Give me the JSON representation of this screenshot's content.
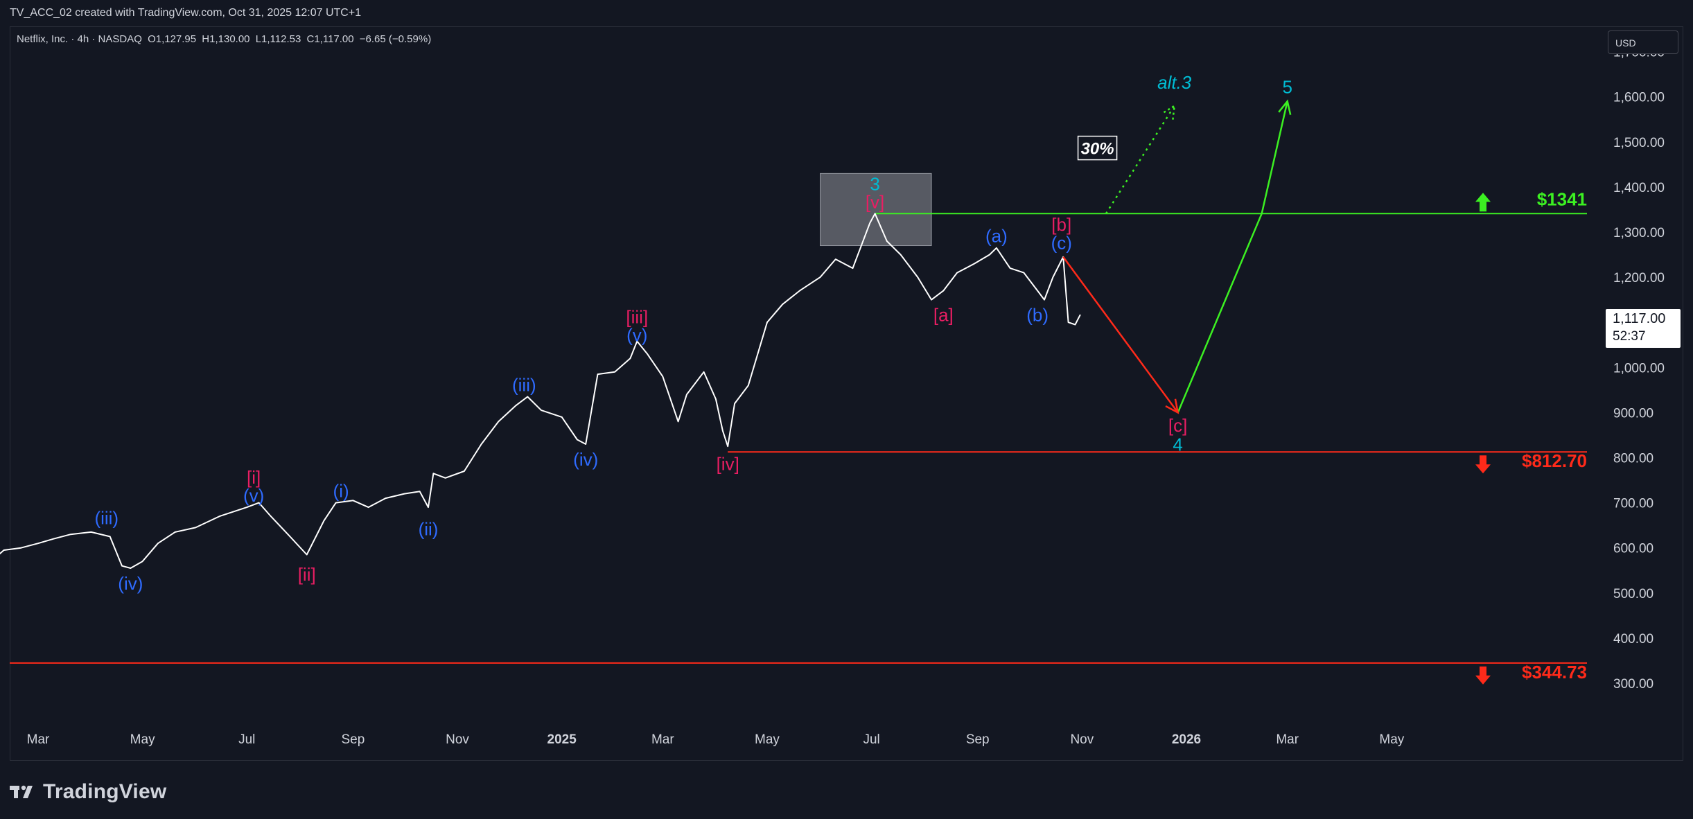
{
  "header": {
    "title": "TV_ACC_02 created with TradingView.com, Oct 31, 2025 12:07 UTC+1"
  },
  "symbol": {
    "name": "Netflix, Inc. · 4h · NASDAQ",
    "open": "O1,127.95",
    "high": "H1,130.00",
    "low": "L1,112.53",
    "close": "C1,117.00",
    "change": "−6.65 (−0.59%)"
  },
  "currency_button": "USD",
  "last_price": {
    "price": "1,117.00",
    "countdown": "52:37"
  },
  "footer": {
    "brand": "TradingView"
  },
  "colors": {
    "background": "#131722",
    "price_line": "#ffffff",
    "wave_blue": "#2f6bff",
    "wave_pink": "#e91e63",
    "wave_cyan": "#00bcd4",
    "target_green": "#3cf022",
    "stop_red": "#ff2a1a",
    "projection_red": "#ff2a1a",
    "projection_green": "#3cf022"
  },
  "chart_data": {
    "type": "line",
    "title": "",
    "xlabel": "",
    "ylabel": "",
    "ylim": [
      250,
      1750
    ],
    "y_ticks": [
      300,
      400,
      500,
      600,
      700,
      800,
      900,
      1000,
      1100,
      1200,
      1300,
      1400,
      1500,
      1600,
      1700
    ],
    "y_tick_labels": [
      "300.00",
      "400.00",
      "500.00",
      "600.00",
      "700.00",
      "800.00",
      "900.00",
      "1,000.00",
      "1,100.00",
      "1,200.00",
      "1,300.00",
      "1,400.00",
      "1,500.00",
      "1,600.00",
      "1,700.00"
    ],
    "x_tick_labels": [
      "Mar",
      "May",
      "Jul",
      "Sep",
      "Nov",
      "2025",
      "Mar",
      "May",
      "Jul",
      "Sep",
      "Nov",
      "2026",
      "Mar",
      "May"
    ],
    "x_tick_dates": [
      "2024-03-01",
      "2024-05-01",
      "2024-07-01",
      "2024-09-01",
      "2024-11-01",
      "2025-01-01",
      "2025-03-01",
      "2025-05-01",
      "2025-07-01",
      "2025-09-01",
      "2025-11-01",
      "2026-01-01",
      "2026-03-01",
      "2026-05-01"
    ],
    "series": [
      {
        "values": [
          [
            "2024-02-01",
            565
          ],
          [
            "2024-02-10",
            595
          ],
          [
            "2024-02-20",
            600
          ],
          [
            "2024-03-01",
            610
          ],
          [
            "2024-03-10",
            620
          ],
          [
            "2024-03-20",
            630
          ],
          [
            "2024-04-01",
            635
          ],
          [
            "2024-04-12",
            625
          ],
          [
            "2024-04-19",
            560
          ],
          [
            "2024-04-24",
            555
          ],
          [
            "2024-05-01",
            570
          ],
          [
            "2024-05-10",
            610
          ],
          [
            "2024-05-20",
            635
          ],
          [
            "2024-06-01",
            645
          ],
          [
            "2024-06-15",
            670
          ],
          [
            "2024-07-01",
            690
          ],
          [
            "2024-07-08",
            700
          ],
          [
            "2024-07-15",
            670
          ],
          [
            "2024-07-25",
            630
          ],
          [
            "2024-08-05",
            585
          ],
          [
            "2024-08-15",
            660
          ],
          [
            "2024-08-22",
            700
          ],
          [
            "2024-09-01",
            705
          ],
          [
            "2024-09-10",
            690
          ],
          [
            "2024-09-20",
            710
          ],
          [
            "2024-10-01",
            720
          ],
          [
            "2024-10-10",
            725
          ],
          [
            "2024-10-15",
            690
          ],
          [
            "2024-10-18",
            765
          ],
          [
            "2024-10-25",
            755
          ],
          [
            "2024-11-05",
            770
          ],
          [
            "2024-11-15",
            830
          ],
          [
            "2024-11-25",
            880
          ],
          [
            "2024-12-05",
            915
          ],
          [
            "2024-12-12",
            935
          ],
          [
            "2024-12-20",
            905
          ],
          [
            "2025-01-01",
            890
          ],
          [
            "2025-01-10",
            840
          ],
          [
            "2025-01-15",
            830
          ],
          [
            "2025-01-22",
            985
          ],
          [
            "2025-02-01",
            990
          ],
          [
            "2025-02-10",
            1020
          ],
          [
            "2025-02-14",
            1058
          ],
          [
            "2025-02-20",
            1030
          ],
          [
            "2025-03-01",
            980
          ],
          [
            "2025-03-10",
            880
          ],
          [
            "2025-03-15",
            940
          ],
          [
            "2025-03-25",
            990
          ],
          [
            "2025-04-01",
            930
          ],
          [
            "2025-04-05",
            860
          ],
          [
            "2025-04-08",
            825
          ],
          [
            "2025-04-12",
            920
          ],
          [
            "2025-04-20",
            960
          ],
          [
            "2025-05-01",
            1100
          ],
          [
            "2025-05-10",
            1140
          ],
          [
            "2025-05-20",
            1170
          ],
          [
            "2025-06-01",
            1200
          ],
          [
            "2025-06-10",
            1240
          ],
          [
            "2025-06-20",
            1220
          ],
          [
            "2025-06-30",
            1320
          ],
          [
            "2025-07-03",
            1341
          ],
          [
            "2025-07-10",
            1280
          ],
          [
            "2025-07-18",
            1250
          ],
          [
            "2025-07-28",
            1200
          ],
          [
            "2025-08-05",
            1150
          ],
          [
            "2025-08-12",
            1170
          ],
          [
            "2025-08-20",
            1210
          ],
          [
            "2025-08-30",
            1230
          ],
          [
            "2025-09-08",
            1250
          ],
          [
            "2025-09-12",
            1265
          ],
          [
            "2025-09-20",
            1220
          ],
          [
            "2025-09-28",
            1210
          ],
          [
            "2025-10-06",
            1170
          ],
          [
            "2025-10-10",
            1150
          ],
          [
            "2025-10-15",
            1200
          ],
          [
            "2025-10-21",
            1245
          ],
          [
            "2025-10-24",
            1100
          ],
          [
            "2025-10-28",
            1095
          ],
          [
            "2025-10-31",
            1117
          ]
        ]
      }
    ],
    "projection": {
      "down": [
        [
          "2025-10-21",
          1245
        ],
        [
          "2025-12-27",
          900
        ]
      ],
      "up": [
        [
          "2025-12-27",
          900
        ],
        [
          "2026-02-14",
          1341
        ],
        [
          "2026-03-01",
          1590
        ]
      ],
      "alt3_dotted": [
        [
          "2025-11-15",
          1341
        ],
        [
          "2025-12-25",
          1580
        ]
      ]
    },
    "levels": [
      {
        "price": 1341,
        "label": "$1341",
        "direction": "up",
        "color": "#3cf022"
      },
      {
        "price": 812.7,
        "label": "$812.70",
        "direction": "down",
        "color": "#ff2a1a"
      },
      {
        "price": 344.73,
        "label": "$344.73",
        "direction": "down",
        "color": "#ff2a1a"
      }
    ],
    "highlight_box": {
      "x_from": "2025-06-01",
      "x_to": "2025-08-05",
      "y_from": 1270,
      "y_to": 1430
    },
    "annotations": [
      {
        "text": "(iii)",
        "date": "2024-04-10",
        "price": 665,
        "color": "#2f6bff"
      },
      {
        "text": "(iv)",
        "date": "2024-04-24",
        "price": 520,
        "color": "#2f6bff"
      },
      {
        "text": "[i]",
        "date": "2024-07-05",
        "price": 755,
        "color": "#e91e63"
      },
      {
        "text": "(v)",
        "date": "2024-07-05",
        "price": 715,
        "color": "#2f6bff"
      },
      {
        "text": "[ii]",
        "date": "2024-08-05",
        "price": 540,
        "color": "#e91e63"
      },
      {
        "text": "(i)",
        "date": "2024-08-25",
        "price": 725,
        "color": "#2f6bff"
      },
      {
        "text": "(ii)",
        "date": "2024-10-15",
        "price": 640,
        "color": "#2f6bff"
      },
      {
        "text": "(iii)",
        "date": "2024-12-10",
        "price": 960,
        "color": "#2f6bff"
      },
      {
        "text": "(iv)",
        "date": "2025-01-15",
        "price": 795,
        "color": "#2f6bff"
      },
      {
        "text": "[iii]",
        "date": "2025-02-14",
        "price": 1110,
        "color": "#e91e63"
      },
      {
        "text": "(v)",
        "date": "2025-02-14",
        "price": 1070,
        "color": "#2f6bff"
      },
      {
        "text": "[iv]",
        "date": "2025-04-08",
        "price": 785,
        "color": "#e91e63"
      },
      {
        "text": "3",
        "date": "2025-07-03",
        "price": 1405,
        "color": "#00bcd4"
      },
      {
        "text": "[v]",
        "date": "2025-07-03",
        "price": 1365,
        "color": "#e91e63"
      },
      {
        "text": "(a)",
        "date": "2025-09-12",
        "price": 1290,
        "color": "#2f6bff"
      },
      {
        "text": "[a]",
        "date": "2025-08-12",
        "price": 1115,
        "color": "#e91e63"
      },
      {
        "text": "[b]",
        "date": "2025-10-20",
        "price": 1315,
        "color": "#e91e63"
      },
      {
        "text": "(c)",
        "date": "2025-10-20",
        "price": 1275,
        "color": "#2f6bff"
      },
      {
        "text": "(b)",
        "date": "2025-10-06",
        "price": 1115,
        "color": "#2f6bff"
      },
      {
        "text": "[c]",
        "date": "2025-12-27",
        "price": 870,
        "color": "#e91e63"
      },
      {
        "text": "4",
        "date": "2025-12-27",
        "price": 828,
        "color": "#00bcd4"
      },
      {
        "text": "5",
        "date": "2026-03-01",
        "price": 1620,
        "color": "#00bcd4"
      },
      {
        "text": "alt.3",
        "date": "2025-12-25",
        "price": 1630,
        "color": "#00bcd4",
        "italic": true
      },
      {
        "text": "30%",
        "date": "2025-11-10",
        "price": 1485,
        "color": "#ffffff",
        "boxed": true
      }
    ]
  }
}
